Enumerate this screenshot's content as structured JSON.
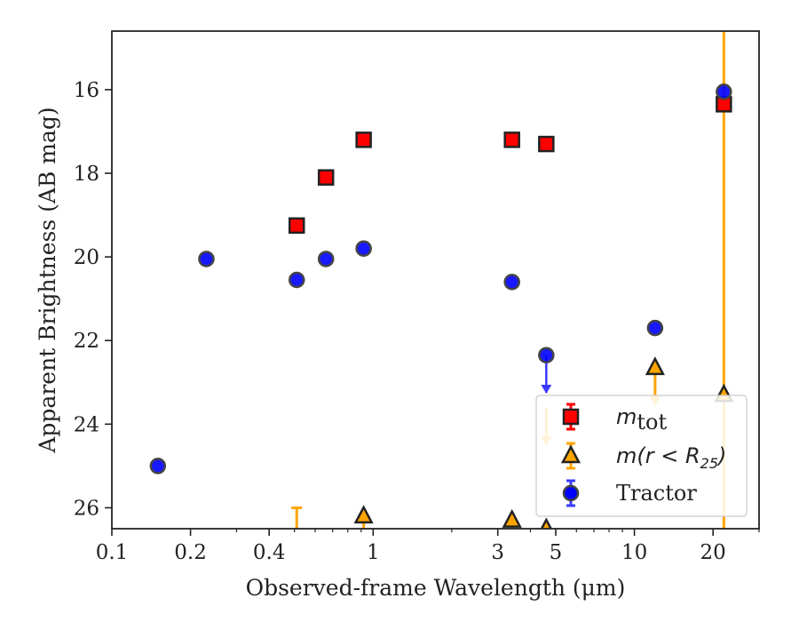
{
  "chart_data": {
    "type": "scatter",
    "title": "",
    "xlabel": "Observed-frame Wavelength (μm)",
    "ylabel": "Apparent Brightness (AB mag)",
    "xscale": "log",
    "xlim": [
      0.1,
      30
    ],
    "ylim": [
      26.5,
      14.6
    ],
    "y_inverted": true,
    "x_ticks": [
      0.1,
      0.2,
      0.4,
      1,
      3,
      5,
      10,
      20
    ],
    "x_tick_labels": [
      "0.1",
      "0.2",
      "0.4",
      "1",
      "3",
      "5",
      "10",
      "20"
    ],
    "y_ticks": [
      16,
      18,
      20,
      22,
      24,
      26
    ],
    "y_tick_labels": [
      "16",
      "18",
      "20",
      "22",
      "24",
      "26"
    ],
    "legend": {
      "placement": "lower-right"
    },
    "series": [
      {
        "name": "m_tot",
        "legend_label": {
          "base": "m",
          "sub": "tot"
        },
        "marker": "square",
        "color": "#ff0000",
        "edge_color": "#222222",
        "points": [
          {
            "x": 0.51,
            "y": 19.25
          },
          {
            "x": 0.66,
            "y": 18.1
          },
          {
            "x": 0.92,
            "y": 17.2
          },
          {
            "x": 3.4,
            "y": 17.2
          },
          {
            "x": 4.6,
            "y": 17.3
          },
          {
            "x": 22.0,
            "y": 16.35
          }
        ]
      },
      {
        "name": "m(r < R25)",
        "legend_label": {
          "base": "m(r < R",
          "sub": "25",
          "tail": ")"
        },
        "marker": "triangle",
        "color": "#ffa500",
        "edge_color": "#222222",
        "points": [
          {
            "x": 0.51,
            "y": 26.5,
            "upper_limit": true,
            "marker_offscale": true,
            "arrow_from": 26.0
          },
          {
            "x": 0.92,
            "y": 26.2,
            "upper_limit": true,
            "arrow_from": 26.2
          },
          {
            "x": 3.4,
            "y": 26.3,
            "upper_limit": true,
            "arrow_from": 26.3
          },
          {
            "x": 4.6,
            "y": 26.5,
            "upper_limit": true,
            "arrow_from": 23.6
          },
          {
            "x": 12.0,
            "y": 22.65,
            "upper_limit": true,
            "arrow_from": 22.65
          },
          {
            "x": 22.0,
            "y": 23.3,
            "error_bar_full_range": true
          }
        ]
      },
      {
        "name": "Tractor",
        "legend_label": {
          "base": "Tractor"
        },
        "marker": "circle",
        "color": "#0000ff",
        "edge_color": "#333333",
        "points": [
          {
            "x": 0.15,
            "y": 25.0
          },
          {
            "x": 0.23,
            "y": 20.05
          },
          {
            "x": 0.51,
            "y": 20.55
          },
          {
            "x": 0.66,
            "y": 20.05
          },
          {
            "x": 0.92,
            "y": 19.8
          },
          {
            "x": 3.4,
            "y": 20.6
          },
          {
            "x": 4.6,
            "y": 22.35,
            "upper_limit": true
          },
          {
            "x": 12.0,
            "y": 21.7
          },
          {
            "x": 22.0,
            "y": 16.05
          }
        ]
      }
    ]
  }
}
